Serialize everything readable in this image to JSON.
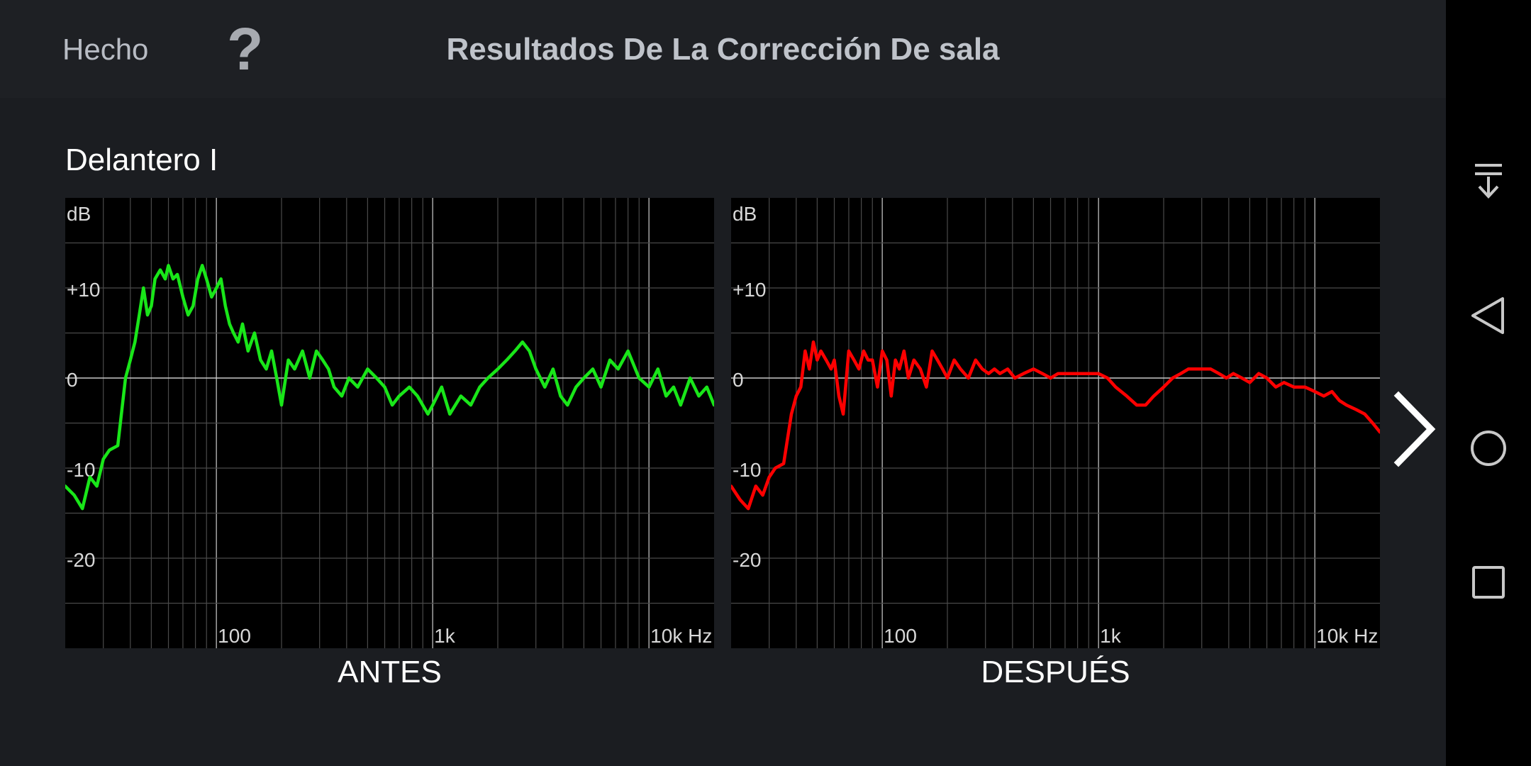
{
  "topbar": {
    "done_label": "Hecho",
    "help_label": "?",
    "title": "Resultados De La Corrección De sala"
  },
  "section": {
    "label": "Delantero I"
  },
  "icons": {
    "next": "chevron-right-icon",
    "nav": [
      "notification-pull-down-icon",
      "back-triangle-icon",
      "home-circle-icon",
      "recents-square-icon"
    ]
  },
  "colors": {
    "before_line": "#19e619",
    "after_line": "#ff0000",
    "background": "#1b1d21",
    "topbar": "#1e2024",
    "chart_bg": "#000000"
  },
  "chart_data": [
    {
      "type": "line",
      "caption": "ANTES",
      "ylabel": "dB",
      "y_tick_labels": [
        "+10",
        "0",
        "-10",
        "-20"
      ],
      "y_ticks": [
        10,
        0,
        -10,
        -20
      ],
      "x_tick_labels": [
        "100",
        "1k",
        "10k Hz"
      ],
      "x_ticks": [
        100,
        1000,
        10000
      ],
      "xlim": [
        20,
        20000
      ],
      "ylim": [
        -30,
        20
      ],
      "x_scale": "log",
      "grid": true,
      "series": [
        {
          "color": "#19e619",
          "x": [
            20,
            22,
            24,
            26,
            28,
            30,
            32,
            35,
            38,
            40,
            42,
            44,
            46,
            48,
            50,
            52,
            55,
            58,
            60,
            63,
            66,
            70,
            74,
            78,
            82,
            86,
            90,
            95,
            100,
            105,
            110,
            115,
            120,
            126,
            132,
            140,
            150,
            160,
            170,
            180,
            190,
            200,
            215,
            230,
            250,
            270,
            290,
            310,
            330,
            350,
            380,
            410,
            450,
            500,
            550,
            600,
            650,
            700,
            780,
            850,
            950,
            1000,
            1100,
            1200,
            1350,
            1500,
            1650,
            1800,
            2000,
            2200,
            2400,
            2600,
            2800,
            3000,
            3300,
            3600,
            3900,
            4200,
            4600,
            5000,
            5500,
            6000,
            6600,
            7200,
            8000,
            9000,
            10000,
            11000,
            12000,
            13000,
            14000,
            15500,
            17000,
            18500,
            20000
          ],
          "y": [
            -12,
            -13,
            -14.5,
            -11,
            -12,
            -9,
            -8,
            -7.5,
            0,
            2,
            4,
            7,
            10,
            7,
            8,
            11,
            12,
            11,
            12.5,
            11,
            11.5,
            9,
            7,
            8,
            11,
            12.5,
            11,
            9,
            10,
            11,
            8,
            6,
            5,
            4,
            6,
            3,
            5,
            2,
            1,
            3,
            0,
            -3,
            2,
            1,
            3,
            0,
            3,
            2,
            1,
            -1,
            -2,
            0,
            -1,
            1,
            0,
            -1,
            -3,
            -2,
            -1,
            -2,
            -4,
            -3,
            -1,
            -4,
            -2,
            -3,
            -1,
            0,
            1,
            2,
            3,
            4,
            3,
            1,
            -1,
            1,
            -2,
            -3,
            -1,
            0,
            1,
            -1,
            2,
            1,
            3,
            0,
            -1,
            1,
            -2,
            -1,
            -3,
            0,
            -2,
            -1,
            -3
          ]
        }
      ]
    },
    {
      "type": "line",
      "caption": "DESPUÉS",
      "ylabel": "dB",
      "y_tick_labels": [
        "+10",
        "0",
        "-10",
        "-20"
      ],
      "y_ticks": [
        10,
        0,
        -10,
        -20
      ],
      "x_tick_labels": [
        "100",
        "1k",
        "10k Hz"
      ],
      "x_ticks": [
        100,
        1000,
        10000
      ],
      "xlim": [
        20,
        20000
      ],
      "ylim": [
        -30,
        20
      ],
      "x_scale": "log",
      "grid": true,
      "series": [
        {
          "color": "#ff0000",
          "x": [
            20,
            22,
            24,
            26,
            28,
            30,
            32,
            35,
            38,
            40,
            42,
            44,
            46,
            48,
            50,
            52,
            55,
            58,
            60,
            63,
            66,
            70,
            74,
            78,
            82,
            86,
            90,
            95,
            100,
            105,
            110,
            115,
            120,
            126,
            132,
            140,
            150,
            160,
            170,
            180,
            190,
            200,
            215,
            230,
            250,
            270,
            290,
            310,
            330,
            350,
            380,
            410,
            450,
            500,
            550,
            600,
            650,
            700,
            780,
            850,
            950,
            1000,
            1100,
            1200,
            1350,
            1500,
            1650,
            1800,
            2000,
            2200,
            2400,
            2600,
            2800,
            3000,
            3300,
            3600,
            3900,
            4200,
            4600,
            5000,
            5500,
            6000,
            6600,
            7200,
            8000,
            9000,
            10000,
            11000,
            12000,
            13000,
            14000,
            15500,
            17000,
            18500,
            20000
          ],
          "y": [
            -12,
            -13.5,
            -14.5,
            -12,
            -13,
            -11,
            -10,
            -9.5,
            -4,
            -2,
            -1,
            3,
            1,
            4,
            2,
            3,
            2,
            1,
            2,
            -2,
            -4,
            3,
            2,
            1,
            3,
            2,
            2,
            -1,
            3,
            2,
            -2,
            2,
            1,
            3,
            0,
            2,
            1,
            -1,
            3,
            2,
            1,
            0,
            2,
            1,
            0,
            2,
            1,
            0.5,
            1,
            0.5,
            1,
            0,
            0.5,
            1,
            0.5,
            0,
            0.5,
            0.5,
            0.5,
            0.5,
            0.5,
            0.5,
            0,
            -1,
            -2,
            -3,
            -3,
            -2,
            -1,
            0,
            0.5,
            1,
            1,
            1,
            1,
            0.5,
            0,
            0.5,
            0,
            -0.5,
            0.5,
            0,
            -1,
            -0.5,
            -1,
            -1,
            -1.5,
            -2,
            -1.5,
            -2.5,
            -3,
            -3.5,
            -4,
            -5,
            -6
          ]
        }
      ]
    }
  ]
}
